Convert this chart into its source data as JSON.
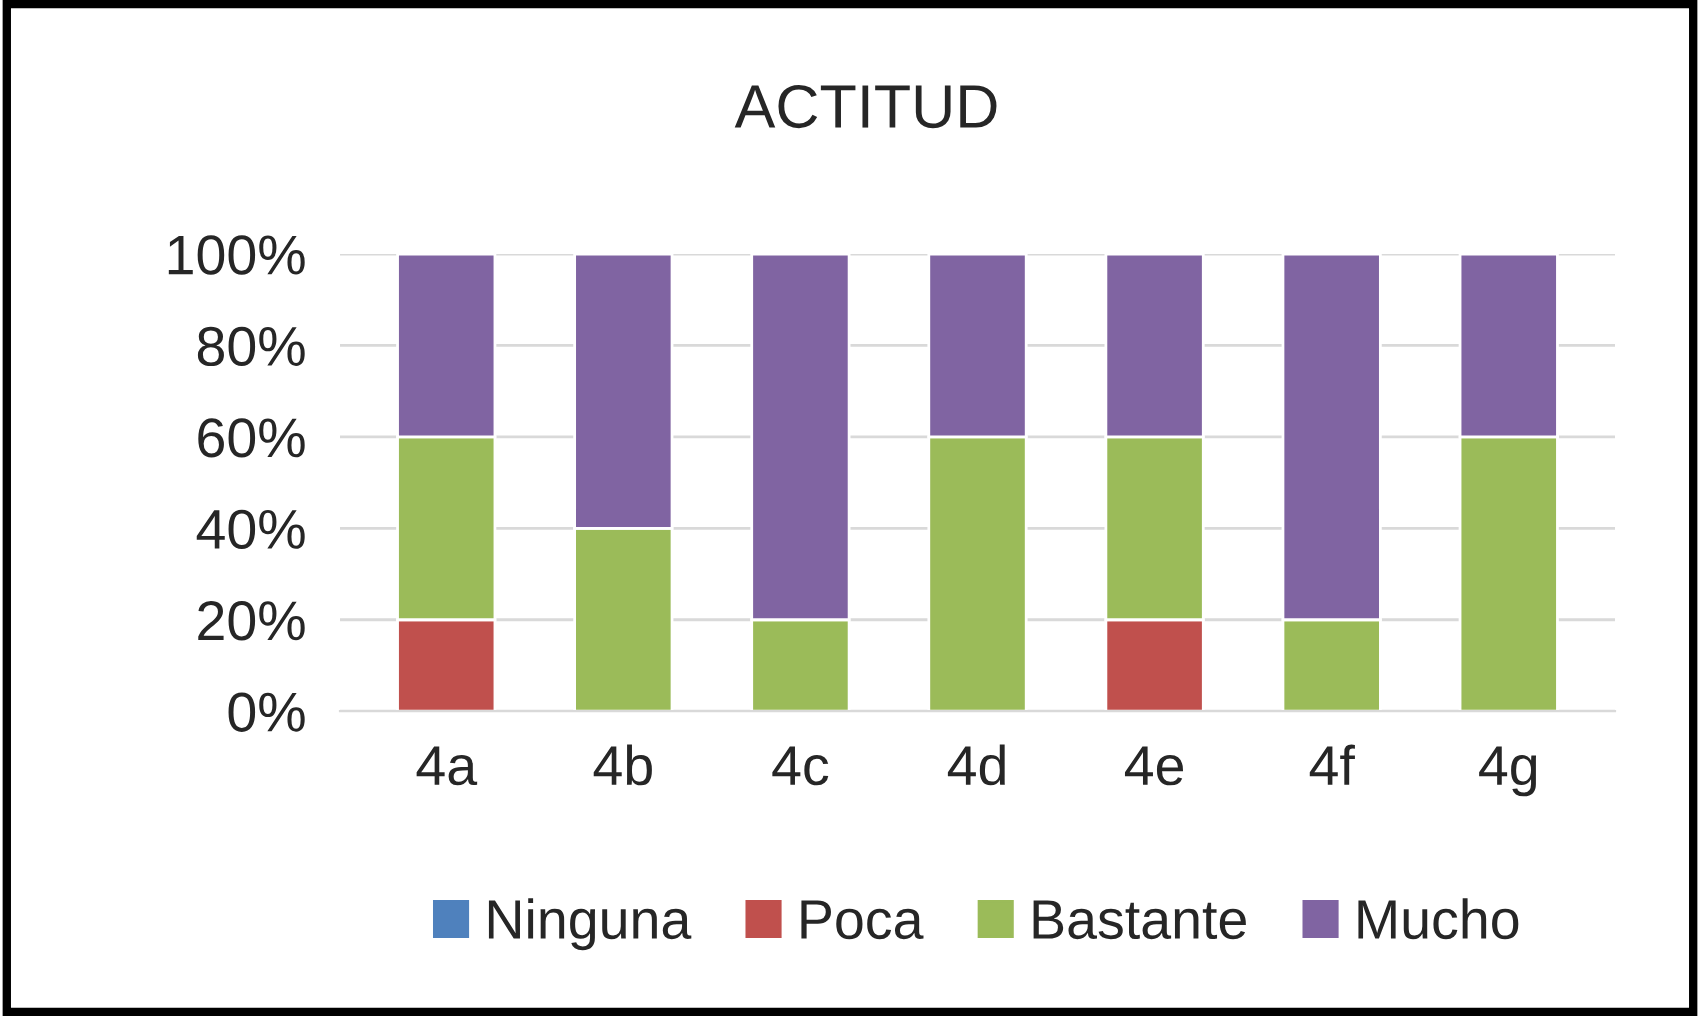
{
  "chart_data": {
    "type": "bar",
    "title": "ACTITUD",
    "stacked": true,
    "categories": [
      "4a",
      "4b",
      "4c",
      "4d",
      "4e",
      "4f",
      "4g"
    ],
    "series": [
      {
        "name": "Ninguna",
        "color": "#4f81bd",
        "values": [
          0,
          0,
          0,
          0,
          0,
          0,
          0
        ]
      },
      {
        "name": "Poca",
        "color": "#c0504d",
        "values": [
          20,
          0,
          0,
          0,
          20,
          0,
          0
        ]
      },
      {
        "name": "Bastante",
        "color": "#9bbb59",
        "values": [
          40,
          40,
          20,
          60,
          40,
          20,
          60
        ]
      },
      {
        "name": "Mucho",
        "color": "#8064a2",
        "values": [
          40,
          60,
          80,
          40,
          40,
          80,
          40
        ]
      }
    ],
    "ylim": [
      0,
      100
    ],
    "yticks": [
      {
        "value": 0,
        "label": "0%"
      },
      {
        "value": 20,
        "label": "20%"
      },
      {
        "value": 40,
        "label": "40%"
      },
      {
        "value": 60,
        "label": "60%"
      },
      {
        "value": 80,
        "label": "80%"
      },
      {
        "value": 100,
        "label": "100%"
      }
    ],
    "grid": "y",
    "legend": "bottom"
  }
}
